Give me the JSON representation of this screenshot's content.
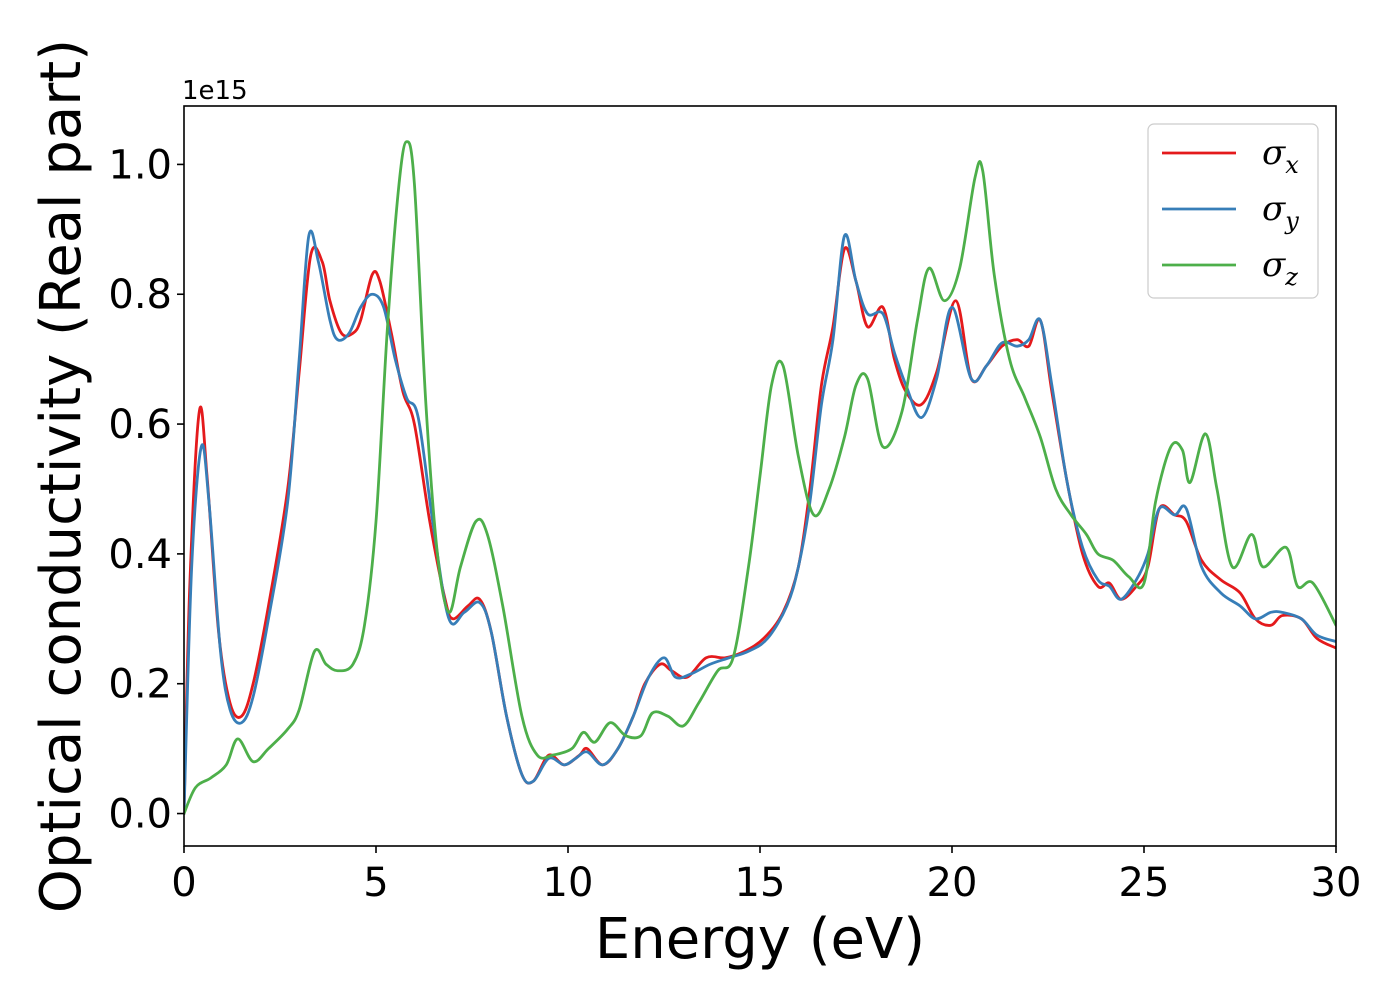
{
  "chart_data": {
    "type": "line",
    "xlabel": "Energy (eV)",
    "ylabel": "Optical conductivity (Real part)",
    "y_offset_text": "1e15",
    "xlim": [
      0,
      30
    ],
    "ylim": [
      -0.05,
      1.09
    ],
    "xticks": [
      0,
      5,
      10,
      15,
      20,
      25,
      30
    ],
    "xtick_labels": [
      "0",
      "5",
      "10",
      "15",
      "20",
      "25",
      "30"
    ],
    "yticks": [
      0.0,
      0.2,
      0.4,
      0.6,
      0.8,
      1.0
    ],
    "ytick_labels": [
      "0.0",
      "0.2",
      "0.4",
      "0.6",
      "0.8",
      "1.0"
    ],
    "grid": false,
    "legend_position": "top-right",
    "series": [
      {
        "name": "σx",
        "legend_symbol": "σ",
        "legend_sub": "x",
        "color": "#e41a1c",
        "points": [
          [
            0,
            0
          ],
          [
            0.15,
            0.35
          ],
          [
            0.4,
            0.62
          ],
          [
            0.6,
            0.52
          ],
          [
            0.9,
            0.28
          ],
          [
            1.2,
            0.17
          ],
          [
            1.5,
            0.15
          ],
          [
            1.8,
            0.2
          ],
          [
            2.2,
            0.32
          ],
          [
            2.7,
            0.5
          ],
          [
            3.0,
            0.68
          ],
          [
            3.3,
            0.86
          ],
          [
            3.6,
            0.85
          ],
          [
            3.8,
            0.79
          ],
          [
            4.1,
            0.74
          ],
          [
            4.4,
            0.74
          ],
          [
            4.6,
            0.76
          ],
          [
            4.9,
            0.83
          ],
          [
            5.1,
            0.82
          ],
          [
            5.4,
            0.74
          ],
          [
            5.7,
            0.65
          ],
          [
            6.0,
            0.6
          ],
          [
            6.4,
            0.45
          ],
          [
            6.8,
            0.33
          ],
          [
            7.0,
            0.3
          ],
          [
            7.4,
            0.32
          ],
          [
            7.7,
            0.33
          ],
          [
            8.0,
            0.28
          ],
          [
            8.4,
            0.15
          ],
          [
            8.8,
            0.06
          ],
          [
            9.1,
            0.05
          ],
          [
            9.5,
            0.09
          ],
          [
            9.9,
            0.075
          ],
          [
            10.3,
            0.09
          ],
          [
            10.5,
            0.1
          ],
          [
            10.9,
            0.075
          ],
          [
            11.3,
            0.1
          ],
          [
            11.7,
            0.15
          ],
          [
            12.0,
            0.2
          ],
          [
            12.4,
            0.23
          ],
          [
            12.7,
            0.22
          ],
          [
            13.1,
            0.21
          ],
          [
            13.6,
            0.24
          ],
          [
            14.1,
            0.24
          ],
          [
            14.6,
            0.25
          ],
          [
            15.1,
            0.27
          ],
          [
            15.6,
            0.31
          ],
          [
            16.0,
            0.38
          ],
          [
            16.3,
            0.5
          ],
          [
            16.6,
            0.66
          ],
          [
            16.9,
            0.75
          ],
          [
            17.2,
            0.87
          ],
          [
            17.5,
            0.82
          ],
          [
            17.8,
            0.75
          ],
          [
            18.2,
            0.78
          ],
          [
            18.5,
            0.7
          ],
          [
            18.8,
            0.65
          ],
          [
            19.2,
            0.63
          ],
          [
            19.6,
            0.68
          ],
          [
            20.1,
            0.79
          ],
          [
            20.5,
            0.67
          ],
          [
            20.9,
            0.69
          ],
          [
            21.3,
            0.72
          ],
          [
            21.7,
            0.73
          ],
          [
            22.0,
            0.72
          ],
          [
            22.3,
            0.76
          ],
          [
            22.6,
            0.65
          ],
          [
            23.0,
            0.51
          ],
          [
            23.4,
            0.4
          ],
          [
            23.8,
            0.35
          ],
          [
            24.1,
            0.355
          ],
          [
            24.4,
            0.33
          ],
          [
            24.8,
            0.35
          ],
          [
            25.1,
            0.38
          ],
          [
            25.4,
            0.47
          ],
          [
            25.8,
            0.46
          ],
          [
            26.1,
            0.45
          ],
          [
            26.5,
            0.39
          ],
          [
            27.0,
            0.36
          ],
          [
            27.5,
            0.34
          ],
          [
            27.9,
            0.3
          ],
          [
            28.3,
            0.29
          ],
          [
            28.6,
            0.305
          ],
          [
            29.1,
            0.3
          ],
          [
            29.5,
            0.27
          ],
          [
            30.0,
            0.255
          ]
        ]
      },
      {
        "name": "σy",
        "legend_symbol": "σ",
        "legend_sub": "y",
        "color": "#377eb8",
        "points": [
          [
            0,
            0
          ],
          [
            0.2,
            0.38
          ],
          [
            0.45,
            0.565
          ],
          [
            0.65,
            0.48
          ],
          [
            0.95,
            0.25
          ],
          [
            1.2,
            0.16
          ],
          [
            1.5,
            0.14
          ],
          [
            1.8,
            0.18
          ],
          [
            2.2,
            0.3
          ],
          [
            2.7,
            0.48
          ],
          [
            3.0,
            0.7
          ],
          [
            3.25,
            0.89
          ],
          [
            3.5,
            0.85
          ],
          [
            3.8,
            0.76
          ],
          [
            4.0,
            0.73
          ],
          [
            4.3,
            0.74
          ],
          [
            4.6,
            0.78
          ],
          [
            4.9,
            0.8
          ],
          [
            5.2,
            0.78
          ],
          [
            5.5,
            0.7
          ],
          [
            5.8,
            0.64
          ],
          [
            6.1,
            0.61
          ],
          [
            6.5,
            0.44
          ],
          [
            6.9,
            0.3
          ],
          [
            7.3,
            0.31
          ],
          [
            7.7,
            0.325
          ],
          [
            8.0,
            0.28
          ],
          [
            8.4,
            0.15
          ],
          [
            8.8,
            0.06
          ],
          [
            9.1,
            0.05
          ],
          [
            9.5,
            0.085
          ],
          [
            9.9,
            0.075
          ],
          [
            10.2,
            0.085
          ],
          [
            10.5,
            0.095
          ],
          [
            10.9,
            0.075
          ],
          [
            11.3,
            0.1
          ],
          [
            11.7,
            0.15
          ],
          [
            12.1,
            0.21
          ],
          [
            12.5,
            0.24
          ],
          [
            12.8,
            0.21
          ],
          [
            13.2,
            0.215
          ],
          [
            13.7,
            0.23
          ],
          [
            14.2,
            0.24
          ],
          [
            14.7,
            0.25
          ],
          [
            15.2,
            0.27
          ],
          [
            15.7,
            0.32
          ],
          [
            16.0,
            0.38
          ],
          [
            16.3,
            0.48
          ],
          [
            16.6,
            0.63
          ],
          [
            16.9,
            0.73
          ],
          [
            17.2,
            0.89
          ],
          [
            17.5,
            0.82
          ],
          [
            17.8,
            0.77
          ],
          [
            18.2,
            0.77
          ],
          [
            18.5,
            0.71
          ],
          [
            18.8,
            0.66
          ],
          [
            19.2,
            0.61
          ],
          [
            19.6,
            0.67
          ],
          [
            20.0,
            0.78
          ],
          [
            20.5,
            0.67
          ],
          [
            20.9,
            0.69
          ],
          [
            21.3,
            0.725
          ],
          [
            21.7,
            0.72
          ],
          [
            22.0,
            0.73
          ],
          [
            22.3,
            0.76
          ],
          [
            22.6,
            0.66
          ],
          [
            23.0,
            0.51
          ],
          [
            23.4,
            0.41
          ],
          [
            23.8,
            0.36
          ],
          [
            24.1,
            0.35
          ],
          [
            24.4,
            0.33
          ],
          [
            24.8,
            0.36
          ],
          [
            25.1,
            0.4
          ],
          [
            25.4,
            0.47
          ],
          [
            25.8,
            0.46
          ],
          [
            26.1,
            0.47
          ],
          [
            26.5,
            0.38
          ],
          [
            27.0,
            0.34
          ],
          [
            27.5,
            0.32
          ],
          [
            27.9,
            0.3
          ],
          [
            28.3,
            0.31
          ],
          [
            28.6,
            0.31
          ],
          [
            29.1,
            0.3
          ],
          [
            29.5,
            0.275
          ],
          [
            30.0,
            0.265
          ]
        ]
      },
      {
        "name": "σz",
        "legend_symbol": "σ",
        "legend_sub": "z",
        "color": "#4daf4a",
        "points": [
          [
            0,
            0
          ],
          [
            0.3,
            0.04
          ],
          [
            0.7,
            0.055
          ],
          [
            1.1,
            0.075
          ],
          [
            1.4,
            0.115
          ],
          [
            1.8,
            0.08
          ],
          [
            2.2,
            0.1
          ],
          [
            2.7,
            0.13
          ],
          [
            3.0,
            0.16
          ],
          [
            3.4,
            0.25
          ],
          [
            3.7,
            0.23
          ],
          [
            4.0,
            0.22
          ],
          [
            4.4,
            0.23
          ],
          [
            4.7,
            0.29
          ],
          [
            5.0,
            0.45
          ],
          [
            5.3,
            0.75
          ],
          [
            5.6,
            0.97
          ],
          [
            5.8,
            1.035
          ],
          [
            6.0,
            0.97
          ],
          [
            6.3,
            0.63
          ],
          [
            6.6,
            0.4
          ],
          [
            6.9,
            0.31
          ],
          [
            7.2,
            0.38
          ],
          [
            7.6,
            0.45
          ],
          [
            7.9,
            0.43
          ],
          [
            8.3,
            0.32
          ],
          [
            8.8,
            0.15
          ],
          [
            9.2,
            0.09
          ],
          [
            9.6,
            0.09
          ],
          [
            10.1,
            0.1
          ],
          [
            10.4,
            0.125
          ],
          [
            10.7,
            0.11
          ],
          [
            11.1,
            0.14
          ],
          [
            11.5,
            0.12
          ],
          [
            11.9,
            0.12
          ],
          [
            12.2,
            0.155
          ],
          [
            12.6,
            0.15
          ],
          [
            13.0,
            0.135
          ],
          [
            13.4,
            0.17
          ],
          [
            13.9,
            0.22
          ],
          [
            14.3,
            0.24
          ],
          [
            14.7,
            0.38
          ],
          [
            15.0,
            0.52
          ],
          [
            15.3,
            0.66
          ],
          [
            15.6,
            0.69
          ],
          [
            16.0,
            0.55
          ],
          [
            16.4,
            0.46
          ],
          [
            16.8,
            0.5
          ],
          [
            17.2,
            0.58
          ],
          [
            17.5,
            0.66
          ],
          [
            17.8,
            0.67
          ],
          [
            18.2,
            0.565
          ],
          [
            18.7,
            0.62
          ],
          [
            19.1,
            0.76
          ],
          [
            19.4,
            0.84
          ],
          [
            19.8,
            0.79
          ],
          [
            20.2,
            0.84
          ],
          [
            20.6,
            0.98
          ],
          [
            20.8,
            0.99
          ],
          [
            21.1,
            0.83
          ],
          [
            21.5,
            0.7
          ],
          [
            21.9,
            0.64
          ],
          [
            22.3,
            0.58
          ],
          [
            22.7,
            0.5
          ],
          [
            23.1,
            0.46
          ],
          [
            23.5,
            0.43
          ],
          [
            23.8,
            0.4
          ],
          [
            24.2,
            0.39
          ],
          [
            24.6,
            0.365
          ],
          [
            25.0,
            0.355
          ],
          [
            25.3,
            0.48
          ],
          [
            25.7,
            0.565
          ],
          [
            26.0,
            0.56
          ],
          [
            26.2,
            0.51
          ],
          [
            26.6,
            0.585
          ],
          [
            26.9,
            0.5
          ],
          [
            27.3,
            0.38
          ],
          [
            27.8,
            0.43
          ],
          [
            28.1,
            0.38
          ],
          [
            28.7,
            0.41
          ],
          [
            29.0,
            0.35
          ],
          [
            29.4,
            0.355
          ],
          [
            30.0,
            0.29
          ]
        ]
      }
    ]
  }
}
